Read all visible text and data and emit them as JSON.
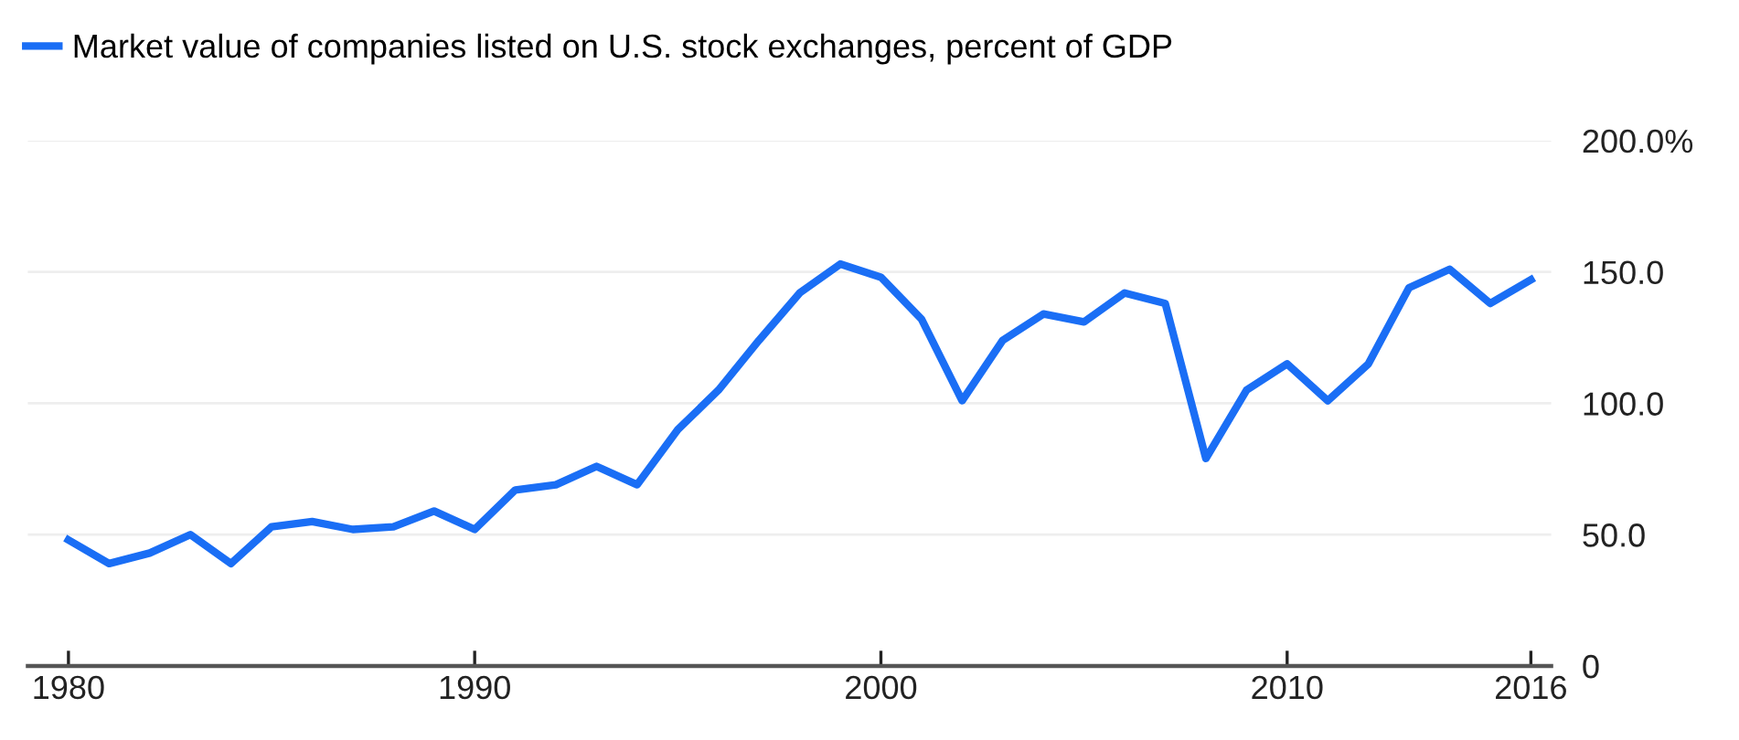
{
  "chart_data": {
    "type": "line",
    "x": [
      1980,
      1981,
      1982,
      1983,
      1984,
      1985,
      1986,
      1987,
      1988,
      1989,
      1990,
      1991,
      1992,
      1993,
      1994,
      1995,
      1996,
      1997,
      1998,
      1999,
      2000,
      2001,
      2002,
      2003,
      2004,
      2005,
      2006,
      2007,
      2008,
      2009,
      2010,
      2011,
      2012,
      2013,
      2014,
      2015,
      2016
    ],
    "series": [
      {
        "name": "Market value of companies listed on U.S. stock exchanges, percent of GDP",
        "color": "#1a6ef5",
        "values": [
          48,
          39,
          43,
          50,
          39,
          53,
          55,
          52,
          53,
          59,
          52,
          67,
          69,
          76,
          69,
          90,
          105,
          124,
          142,
          153,
          148,
          132,
          101,
          124,
          134,
          131,
          142,
          138,
          79,
          105,
          115,
          101,
          115,
          144,
          151,
          138,
          147
        ]
      }
    ],
    "xlim": [
      1979,
      2016.5
    ],
    "xticks": [
      1980,
      1990,
      2000,
      2010,
      2016
    ],
    "ylim": [
      0,
      200
    ],
    "yticks": [
      {
        "value": 0,
        "label": "0"
      },
      {
        "value": 50,
        "label": "50.0"
      },
      {
        "value": 100,
        "label": "100.0"
      },
      {
        "value": 150,
        "label": "150.0"
      },
      {
        "value": 200,
        "label": "200.0%"
      }
    ],
    "grid": "y",
    "legend": "top left",
    "marker": "none",
    "line_style": "solid"
  }
}
